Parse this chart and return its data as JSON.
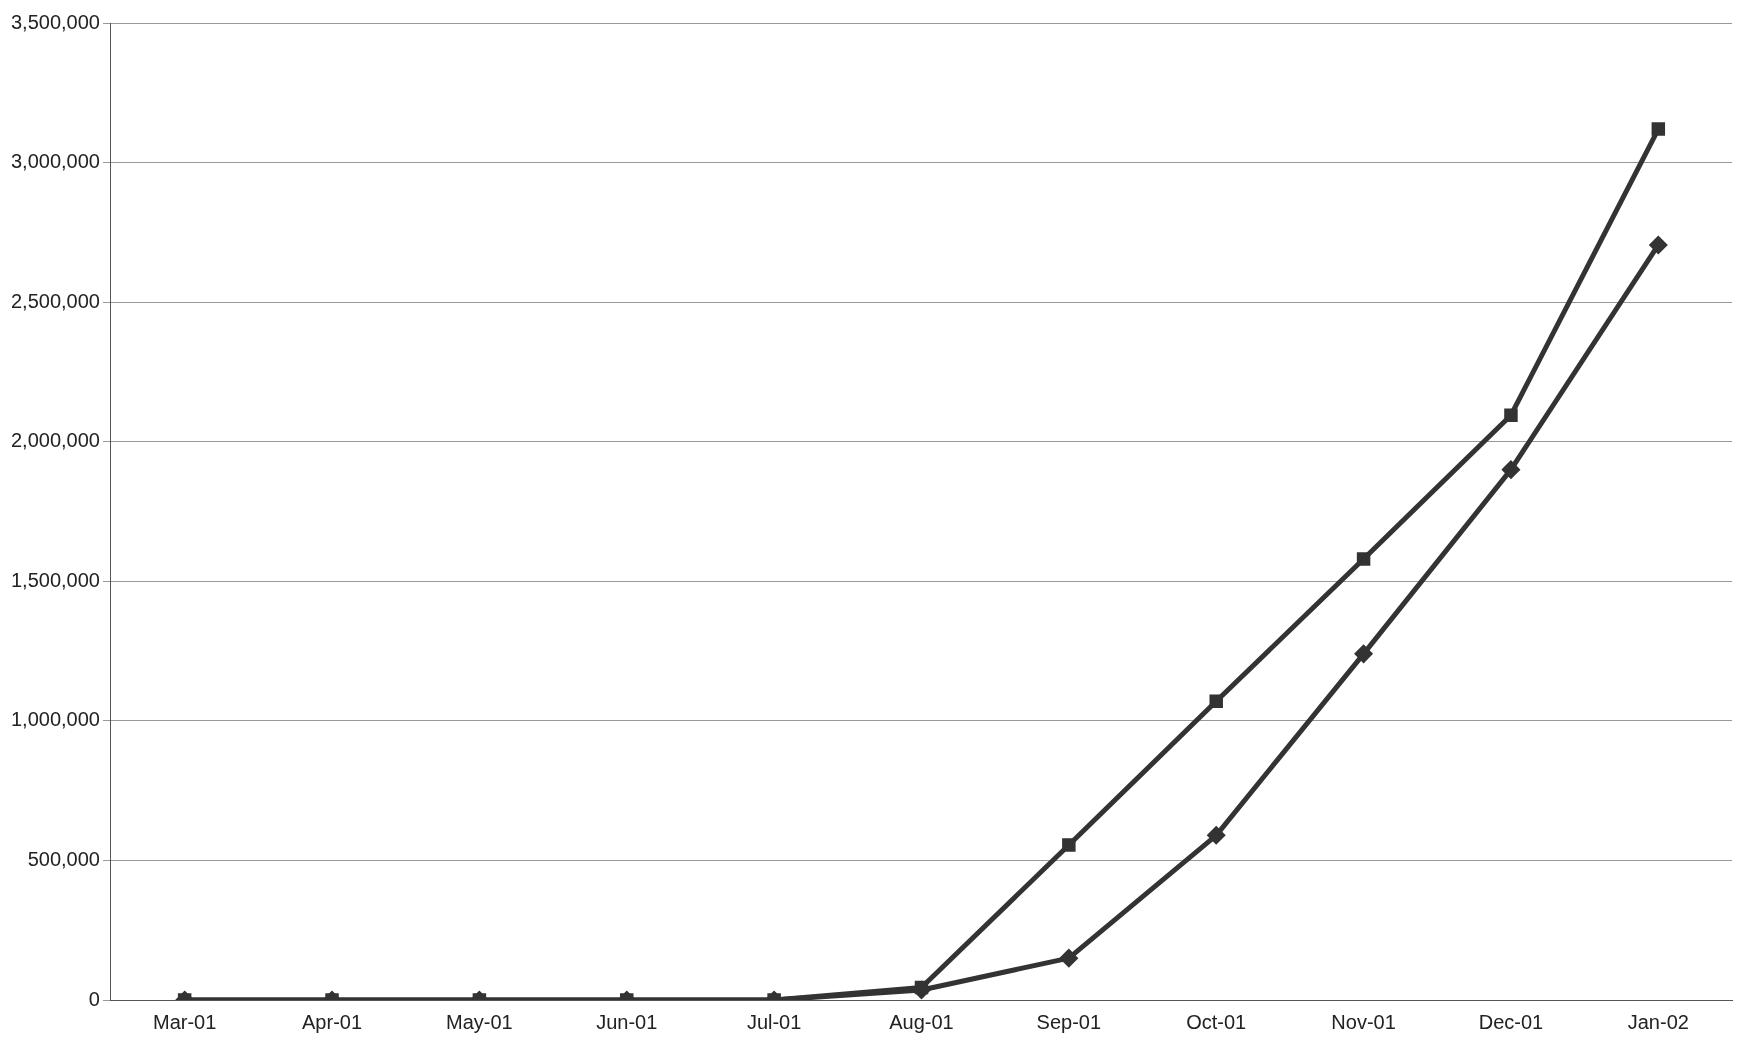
{
  "chart_data": {
    "type": "line",
    "categories": [
      "Mar-01",
      "Apr-01",
      "May-01",
      "Jun-01",
      "Jul-01",
      "Aug-01",
      "Sep-01",
      "Oct-01",
      "Nov-01",
      "Dec-01",
      "Jan-02"
    ],
    "series": [
      {
        "color": "#333333",
        "marker": "square",
        "values": [
          0,
          0,
          0,
          0,
          0,
          45000,
          555000,
          1070000,
          1580000,
          2095000,
          3120000
        ]
      },
      {
        "color": "#333333",
        "marker": "diamond",
        "values": [
          0,
          0,
          0,
          0,
          0,
          36000,
          150000,
          590000,
          1240000,
          1900000,
          2705000
        ]
      }
    ],
    "ylim": [
      0,
      3500000
    ],
    "yticks": [
      0,
      {
        "value": 500000,
        "label": "500,000"
      },
      {
        "value": 1000000,
        "label": "1,000,000"
      },
      {
        "value": 1500000,
        "label": "1,500,000"
      },
      {
        "value": 2000000,
        "label": "2,000,000"
      },
      {
        "value": 2500000,
        "label": "2,500,000"
      },
      {
        "value": 3000000,
        "label": "3,000,000"
      },
      {
        "value": 3500000,
        "label": "3,500,000"
      }
    ],
    "grid": "y",
    "line_style": "solid"
  }
}
